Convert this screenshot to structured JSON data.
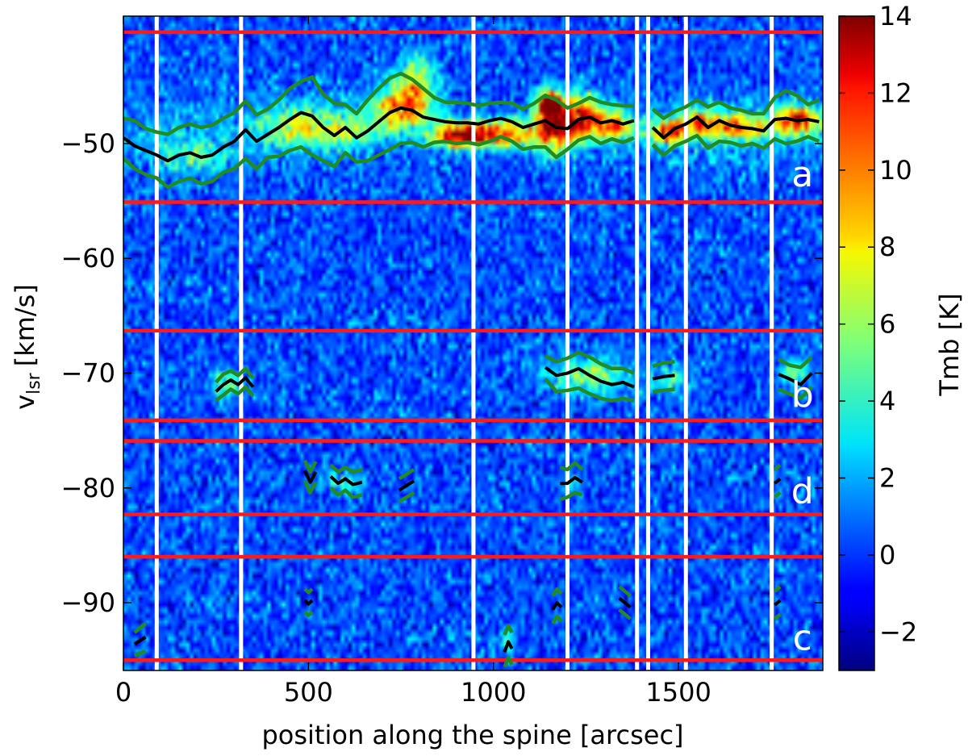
{
  "chart_data": {
    "type": "heatmap",
    "description_of_axes": "position-velocity diagram",
    "xlabel": "position along the spine [arcsec]",
    "ylabel_main": "v",
    "ylabel_sub": "lsr",
    "ylabel_unit": "[km/s]",
    "xlim": [
      0,
      1890
    ],
    "ylim": [
      -95.9,
      -38.9
    ],
    "x_ticks": [
      {
        "value": 0,
        "label": "0"
      },
      {
        "value": 500,
        "label": "500"
      },
      {
        "value": 1000,
        "label": "1000"
      },
      {
        "value": 1500,
        "label": "1500"
      }
    ],
    "y_ticks": [
      {
        "value": -50,
        "label": "−50"
      },
      {
        "value": -60,
        "label": "−60"
      },
      {
        "value": -70,
        "label": "−70"
      },
      {
        "value": -80,
        "label": "−80"
      },
      {
        "value": -90,
        "label": "−90"
      }
    ],
    "colorbar": {
      "label": "Tmb [K]",
      "range": [
        -3,
        14
      ],
      "ticks": [
        {
          "value": 14,
          "label": "14"
        },
        {
          "value": 12,
          "label": "12"
        },
        {
          "value": 10,
          "label": "10"
        },
        {
          "value": 8,
          "label": "8"
        },
        {
          "value": 6,
          "label": "6"
        },
        {
          "value": 4,
          "label": "4"
        },
        {
          "value": 2,
          "label": "2"
        },
        {
          "value": 0,
          "label": "0"
        },
        {
          "value": -2,
          "label": "−2"
        }
      ],
      "colormap": "jet"
    },
    "red_lines_vlsr": [
      -40.3,
      -55.1,
      -66.3,
      -74.1,
      -75.9,
      -82.3,
      -86.0,
      -95.0
    ],
    "white_lines_position": [
      90,
      318,
      946,
      1200,
      1388,
      1418,
      1520,
      1752
    ],
    "panel_labels": [
      {
        "label": "a",
        "x": 1835,
        "y": -52.6
      },
      {
        "label": "b",
        "x": 1835,
        "y": -71.8
      },
      {
        "label": "d",
        "x": 1835,
        "y": -80.2
      },
      {
        "label": "c",
        "x": 1835,
        "y": -93.0
      }
    ],
    "emission_blobs": [
      {
        "x": 460,
        "v": -48.5,
        "sx": 90,
        "sv": 1.6,
        "amp": 5.5
      },
      {
        "x": 600,
        "v": -48.8,
        "sx": 90,
        "sv": 1.5,
        "amp": 5.0
      },
      {
        "x": 760,
        "v": -46.8,
        "sx": 80,
        "sv": 2.0,
        "amp": 9.5
      },
      {
        "x": 790,
        "v": -44.0,
        "sx": 50,
        "sv": 2.0,
        "amp": 5.0
      },
      {
        "x": 900,
        "v": -49.3,
        "sx": 70,
        "sv": 1.0,
        "amp": 11.5
      },
      {
        "x": 1010,
        "v": -49.2,
        "sx": 90,
        "sv": 1.2,
        "amp": 10.5
      },
      {
        "x": 1150,
        "v": -46.5,
        "sx": 30,
        "sv": 1.1,
        "amp": 12.5
      },
      {
        "x": 1160,
        "v": -48.5,
        "sx": 55,
        "sv": 2.2,
        "amp": 11.5
      },
      {
        "x": 1235,
        "v": -47.6,
        "sx": 50,
        "sv": 1.8,
        "amp": 11.0
      },
      {
        "x": 1320,
        "v": -48.4,
        "sx": 60,
        "sv": 1.2,
        "amp": 9.0
      },
      {
        "x": 1470,
        "v": -49.0,
        "sx": 45,
        "sv": 1.0,
        "amp": 10.5
      },
      {
        "x": 1570,
        "v": -48.3,
        "sx": 70,
        "sv": 1.2,
        "amp": 9.0
      },
      {
        "x": 1680,
        "v": -48.6,
        "sx": 60,
        "sv": 1.1,
        "amp": 8.0
      },
      {
        "x": 1820,
        "v": -48.0,
        "sx": 60,
        "sv": 1.3,
        "amp": 10.5
      },
      {
        "x": 180,
        "v": -51.0,
        "sx": 110,
        "sv": 1.6,
        "amp": 3.5
      },
      {
        "x": 280,
        "v": -71.0,
        "sx": 45,
        "sv": 1.2,
        "amp": 4.5
      },
      {
        "x": 1260,
        "v": -70.2,
        "sx": 110,
        "sv": 1.6,
        "amp": 5.5
      },
      {
        "x": 1480,
        "v": -70.5,
        "sx": 50,
        "sv": 1.2,
        "amp": 4.0
      },
      {
        "x": 1810,
        "v": -70.0,
        "sx": 40,
        "sv": 1.3,
        "amp": 4.5
      },
      {
        "x": 590,
        "v": -79.5,
        "sx": 60,
        "sv": 1.0,
        "amp": 3.0
      },
      {
        "x": 1210,
        "v": -79.5,
        "sx": 30,
        "sv": 1.0,
        "amp": 3.0
      },
      {
        "x": 1040,
        "v": -93.5,
        "sx": 20,
        "sv": 1.2,
        "amp": 3.0
      }
    ],
    "series": [
      {
        "name": "cloud a",
        "segments": [
          {
            "x": [
              0,
              30,
              60,
              90,
              120,
              150,
              180,
              210,
              240,
              270,
              300,
              330,
              360,
              390,
              420,
              450,
              480,
              510,
              540,
              570,
              600,
              630,
              660,
              690,
              720,
              750,
              780,
              810,
              840,
              870,
              900,
              930,
              960,
              990,
              1020,
              1050,
              1080,
              1110,
              1140,
              1170,
              1200,
              1230,
              1260,
              1290,
              1320,
              1350,
              1380
            ],
            "center": [
              -49.5,
              -50.2,
              -50.6,
              -51.0,
              -51.5,
              -51.0,
              -50.8,
              -51.2,
              -51.0,
              -50.3,
              -49.8,
              -48.8,
              -49.8,
              -49.2,
              -48.6,
              -47.9,
              -47.3,
              -47.6,
              -48.6,
              -49.3,
              -48.6,
              -49.5,
              -48.9,
              -48.1,
              -47.3,
              -46.9,
              -47.1,
              -47.7,
              -47.9,
              -48.1,
              -48.2,
              -48.2,
              -48.3,
              -48.0,
              -47.8,
              -48.1,
              -48.6,
              -48.3,
              -48.0,
              -48.6,
              -48.7,
              -47.9,
              -47.7,
              -48.2,
              -48.0,
              -48.3,
              -48.0
            ],
            "upper": [
              -47.8,
              -48.0,
              -48.7,
              -49.0,
              -49.2,
              -48.6,
              -48.3,
              -48.6,
              -48.4,
              -47.8,
              -47.3,
              -46.3,
              -47.5,
              -47.0,
              -46.2,
              -45.2,
              -44.6,
              -44.2,
              -45.7,
              -46.5,
              -46.6,
              -47.4,
              -46.2,
              -45.2,
              -44.3,
              -43.9,
              -44.4,
              -45.2,
              -46.0,
              -46.4,
              -46.4,
              -46.5,
              -46.7,
              -46.5,
              -46.4,
              -46.5,
              -47.0,
              -46.5,
              -45.8,
              -46.2,
              -46.9,
              -46.5,
              -46.0,
              -46.4,
              -46.6,
              -46.7,
              -46.7
            ],
            "lower": [
              -51.3,
              -52.2,
              -52.7,
              -53.0,
              -53.8,
              -53.3,
              -53.0,
              -53.5,
              -53.3,
              -52.5,
              -52.2,
              -51.3,
              -52.2,
              -51.2,
              -51.1,
              -50.6,
              -50.3,
              -51.0,
              -51.5,
              -52.0,
              -50.8,
              -51.6,
              -51.5,
              -51.0,
              -50.5,
              -50.0,
              -49.9,
              -50.3,
              -49.9,
              -49.8,
              -50.0,
              -49.9,
              -50.1,
              -49.8,
              -49.4,
              -49.8,
              -50.5,
              -50.3,
              -50.3,
              -51.2,
              -50.5,
              -49.7,
              -49.4,
              -50.0,
              -49.6,
              -49.9,
              -49.5
            ]
          },
          {
            "x": [
              1430,
              1460,
              1490,
              1520,
              1550,
              1580,
              1610,
              1640,
              1670,
              1700,
              1730,
              1760,
              1790,
              1820,
              1850,
              1880
            ],
            "center": [
              -48.6,
              -49.5,
              -48.7,
              -48.3,
              -47.7,
              -48.6,
              -48.0,
              -48.4,
              -48.6,
              -48.7,
              -48.9,
              -47.9,
              -47.8,
              -48.0,
              -47.9,
              -48.1
            ],
            "upper": [
              -47.0,
              -47.8,
              -47.2,
              -46.8,
              -46.2,
              -46.8,
              -46.4,
              -46.9,
              -47.1,
              -47.4,
              -47.4,
              -46.0,
              -45.4,
              -45.8,
              -46.6,
              -46.2
            ],
            "lower": [
              -50.1,
              -51.0,
              -50.2,
              -49.8,
              -49.3,
              -50.4,
              -49.8,
              -49.9,
              -50.2,
              -50.0,
              -50.4,
              -49.6,
              -50.0,
              -49.8,
              -49.4,
              -49.8
            ]
          }
        ]
      },
      {
        "name": "cloud b",
        "segments": [
          {
            "x": [
              250,
              270,
              290,
              310,
              330,
              350
            ],
            "center": [
              -71.6,
              -71.0,
              -70.6,
              -71.0,
              -70.4,
              -71.2
            ],
            "upper": [
              -70.8,
              -70.1,
              -69.8,
              -70.2,
              -69.6,
              -70.4
            ],
            "lower": [
              -72.4,
              -71.9,
              -71.4,
              -71.8,
              -71.2,
              -72.0
            ]
          },
          {
            "x": [
              1140,
              1170,
              1200,
              1230,
              1260,
              1290,
              1320,
              1350,
              1380
            ],
            "center": [
              -69.5,
              -70.2,
              -70.0,
              -69.6,
              -70.2,
              -70.7,
              -71.0,
              -70.8,
              -71.2
            ],
            "upper": [
              -68.5,
              -69.0,
              -68.7,
              -68.2,
              -68.6,
              -69.2,
              -69.6,
              -69.6,
              -70.0
            ],
            "lower": [
              -70.5,
              -71.6,
              -71.5,
              -71.3,
              -71.8,
              -72.2,
              -72.4,
              -72.2,
              -72.4
            ]
          },
          {
            "x": [
              1430,
              1460,
              1490
            ],
            "center": [
              -70.5,
              -70.3,
              -70.2
            ],
            "upper": [
              -69.4,
              -69.1,
              -69.0
            ],
            "lower": [
              -71.6,
              -71.5,
              -71.4
            ]
          },
          {
            "x": [
              1770,
              1800,
              1830,
              1860
            ],
            "center": [
              -70.1,
              -70.5,
              -71.0,
              -70.0
            ],
            "upper": [
              -68.8,
              -69.3,
              -69.5,
              -68.6
            ],
            "lower": [
              -71.4,
              -71.8,
              -72.2,
              -71.2
            ]
          }
        ]
      },
      {
        "name": "cloud d",
        "segments": [
          {
            "x": [
              490,
              505,
              520
            ],
            "center": [
              -78.5,
              -79.5,
              -78.6
            ],
            "upper": [
              -77.6,
              -78.6,
              -77.7
            ],
            "lower": [
              -79.4,
              -80.4,
              -79.5
            ]
          },
          {
            "x": [
              560,
              580,
              600,
              620,
              645
            ],
            "center": [
              -79.0,
              -79.6,
              -79.2,
              -79.7,
              -79.5
            ],
            "upper": [
              -78.0,
              -78.6,
              -78.2,
              -78.6,
              -78.4
            ],
            "lower": [
              -80.0,
              -80.6,
              -80.2,
              -80.8,
              -80.6
            ]
          },
          {
            "x": [
              745,
              765,
              785
            ],
            "center": [
              -80.2,
              -79.8,
              -79.4
            ],
            "upper": [
              -79.2,
              -78.8,
              -78.4
            ],
            "lower": [
              -81.2,
              -80.8,
              -80.4
            ]
          },
          {
            "x": [
              1180,
              1200,
              1220,
              1240
            ],
            "center": [
              -79.6,
              -79.6,
              -79.1,
              -79.5
            ],
            "upper": [
              -78.2,
              -78.4,
              -77.8,
              -78.4
            ],
            "lower": [
              -81.0,
              -80.8,
              -80.4,
              -80.6
            ]
          },
          {
            "x": [
              1760,
              1775
            ],
            "center": [
              -79.6,
              -79.2
            ],
            "upper": [
              -78.4,
              -78.0
            ],
            "lower": [
              -80.8,
              -80.4
            ]
          }
        ]
      },
      {
        "name": "cloud c",
        "segments": [
          {
            "x": [
              30,
              45,
              60
            ],
            "center": [
              -93.6,
              -93.3,
              -93.0
            ],
            "upper": [
              -92.6,
              -92.2,
              -91.8
            ],
            "lower": [
              -94.6,
              -94.4,
              -94.2
            ]
          },
          {
            "x": [
              490,
              500,
              510
            ],
            "center": [
              -89.8,
              -90.1,
              -89.8
            ],
            "upper": [
              -88.8,
              -89.1,
              -88.8
            ],
            "lower": [
              -90.8,
              -91.1,
              -90.8
            ]
          },
          {
            "x": [
              1030,
              1040,
              1050
            ],
            "center": [
              -94.3,
              -93.4,
              -94.0
            ],
            "upper": [
              -92.8,
              -92.0,
              -92.6
            ],
            "lower": [
              -95.6,
              -94.8,
              -95.4
            ]
          },
          {
            "x": [
              1160,
              1172,
              1184
            ],
            "center": [
              -90.6,
              -90.0,
              -90.4
            ],
            "upper": [
              -89.4,
              -88.8,
              -89.2
            ],
            "lower": [
              -91.8,
              -91.2,
              -91.6
            ]
          },
          {
            "x": [
              1340,
              1355,
              1370
            ],
            "center": [
              -89.6,
              -90.0,
              -90.4
            ],
            "upper": [
              -88.6,
              -89.0,
              -89.4
            ],
            "lower": [
              -90.6,
              -91.0,
              -91.4
            ]
          },
          {
            "x": [
              1760,
              1775
            ],
            "center": [
              -90.2,
              -89.8
            ],
            "upper": [
              -89.0,
              -88.6
            ],
            "lower": [
              -91.4,
              -91.0
            ]
          }
        ]
      }
    ]
  }
}
